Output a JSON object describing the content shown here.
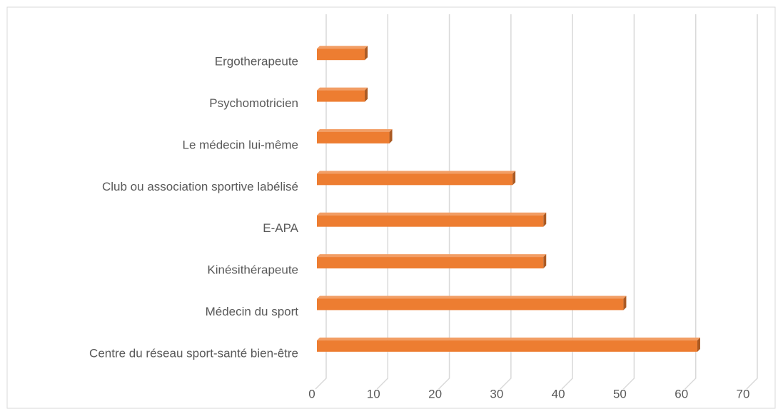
{
  "chart_data": {
    "type": "bar3d_horizontal",
    "categories": [
      "Ergotherapeute",
      "Psychomotricien",
      "Le médecin lui-même",
      "Club ou association sportive labélisé",
      "E-APA",
      "Kinésithérapeute",
      "Médecin du sport",
      "Centre du réseau sport-santé bien-être"
    ],
    "values": [
      8,
      8,
      12,
      32,
      37,
      37,
      50,
      62
    ],
    "color": "#ed7d31",
    "xlim": [
      0,
      70
    ],
    "xticks": [
      0,
      10,
      20,
      30,
      40,
      50,
      60,
      70
    ],
    "grid": true
  }
}
